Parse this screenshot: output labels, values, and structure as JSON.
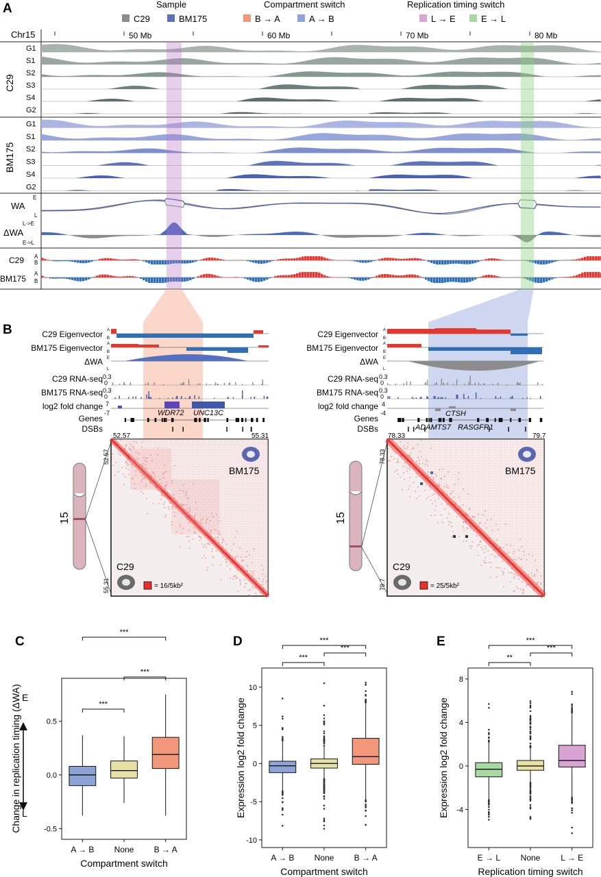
{
  "panels": {
    "a": "A",
    "b": "B",
    "c": "C",
    "d": "D",
    "e": "E"
  },
  "legend": {
    "sample_title": "Sample",
    "sample_items": [
      {
        "label": "C29",
        "color": "#8c8c8c"
      },
      {
        "label": "BM175",
        "color": "#5a70b8"
      }
    ],
    "compartment_title": "Compartment switch",
    "compartment_items": [
      {
        "label": "B → A",
        "color": "#f2977a"
      },
      {
        "label": "A → B",
        "color": "#8ea4d6"
      }
    ],
    "rt_title": "Replication timing switch",
    "rt_items": [
      {
        "label": "L → E",
        "color": "#d9a4d4"
      },
      {
        "label": "E → L",
        "color": "#a8d9a2"
      }
    ]
  },
  "panel_a": {
    "chrom": "Chr15",
    "ticks": [
      "50 Mb",
      "60 Mb",
      "70 Mb",
      "80 Mb"
    ],
    "c29_label": "C29",
    "bm175_label": "BM175",
    "phases": [
      "G1",
      "S1",
      "S2",
      "S3",
      "S4",
      "G2"
    ],
    "wa_label": "WA",
    "dwa_label": "ΔWA",
    "e_lbl": "E",
    "l_lbl": "L",
    "le_lbl": "L->E",
    "el_lbl": "E->L",
    "a_lbl": "A",
    "b_lbl": "B"
  },
  "panel_b": {
    "track_labels": [
      "C29 Eigenvector",
      "BM175 Eigenvector",
      "ΔWA",
      "C29 RNA-seq",
      "BM175 RNA-seq",
      "log2 fold change",
      "Genes",
      "DSBs"
    ],
    "left": {
      "genes": [
        "WDR72",
        "UNC13C"
      ],
      "start": "52.57",
      "end": "55.31",
      "scale": "= 16/5kb²",
      "fc_top": "7",
      "fc_bot": "-7"
    },
    "right": {
      "genes": [
        "CTSH",
        "ADAMTS7",
        "RASGFR1"
      ],
      "start": "78.33",
      "end": "79.7",
      "scale": "= 25/5kb²",
      "fc_top": "4",
      "fc_bot": "-4"
    },
    "chrom_num": "15",
    "rna_max": "0.3",
    "rna_min": "0",
    "bm175": "BM175",
    "c29": "C29"
  },
  "chart_data": [
    {
      "type": "box",
      "panel": "C",
      "ylabel": "Change in replication timing (ΔWA)",
      "xlabel": "Compartment switch",
      "categories": [
        "A → B",
        "None",
        "B → A"
      ],
      "colors": [
        "#8ea4d6",
        "#e8e1a6",
        "#f2977a"
      ],
      "ylim": [
        -0.6,
        0.9
      ],
      "yticks": [
        -0.5,
        0.0,
        0.5
      ],
      "ytick_labels": [
        "-0.5",
        "0.0",
        "0.5"
      ],
      "e_label": "E",
      "l_label": "L",
      "boxes": [
        {
          "whisker_low": -0.38,
          "q1": -0.1,
          "median": 0.0,
          "q3": 0.08,
          "whisker_high": 0.37
        },
        {
          "whisker_low": -0.26,
          "q1": -0.03,
          "median": 0.04,
          "q3": 0.13,
          "whisker_high": 0.36
        },
        {
          "whisker_low": -0.38,
          "q1": 0.06,
          "median": 0.19,
          "q3": 0.35,
          "whisker_high": 0.75
        }
      ],
      "sig": [
        {
          "from": 0,
          "to": 1,
          "label": "***"
        },
        {
          "from": 1,
          "to": 2,
          "label": "***"
        },
        {
          "from": 0,
          "to": 2,
          "label": "***"
        }
      ]
    },
    {
      "type": "box",
      "panel": "D",
      "ylabel": "Expression log2 fold change",
      "xlabel": "Compartment switch",
      "categories": [
        "A → B",
        "None",
        "B → A"
      ],
      "colors": [
        "#8ea4d6",
        "#e8e1a6",
        "#f2977a"
      ],
      "ylim": [
        -11,
        12.5
      ],
      "yticks": [
        -10,
        -5,
        0,
        5,
        10
      ],
      "ytick_labels": [
        "-10",
        "-5",
        "0",
        "5",
        "10"
      ],
      "boxes": [
        {
          "whisker_low": -3.5,
          "q1": -1.2,
          "median": -0.3,
          "q3": 0.3,
          "whisker_high": 3.0
        },
        {
          "whisker_low": -2.0,
          "q1": -0.6,
          "median": 0.0,
          "q3": 0.6,
          "whisker_high": 2.3
        },
        {
          "whisker_low": -4.8,
          "q1": -0.1,
          "median": 0.9,
          "q3": 3.3,
          "whisker_high": 8.0
        }
      ],
      "sig": [
        {
          "from": 0,
          "to": 1,
          "label": "***"
        },
        {
          "from": 1,
          "to": 2,
          "label": "***"
        },
        {
          "from": 0,
          "to": 2,
          "label": "***"
        }
      ]
    },
    {
      "type": "box",
      "panel": "E",
      "ylabel": "Expression log2 fold change",
      "xlabel": "Replication timing switch",
      "categories": [
        "E → L",
        "None",
        "L → E"
      ],
      "colors": [
        "#a8d9a2",
        "#e8e1a6",
        "#d9a4d4"
      ],
      "ylim": [
        -7.5,
        9
      ],
      "yticks": [
        -4,
        0,
        4,
        8
      ],
      "ytick_labels": [
        "-4",
        "0",
        "4",
        "8"
      ],
      "boxes": [
        {
          "whisker_low": -3.1,
          "q1": -1.0,
          "median": -0.3,
          "q3": 0.3,
          "whisker_high": 2.2
        },
        {
          "whisker_low": -1.5,
          "q1": -0.4,
          "median": 0.0,
          "q3": 0.5,
          "whisker_high": 1.7
        },
        {
          "whisker_low": -2.9,
          "q1": -0.1,
          "median": 0.5,
          "q3": 1.9,
          "whisker_high": 4.8
        }
      ],
      "sig": [
        {
          "from": 0,
          "to": 1,
          "label": "**"
        },
        {
          "from": 1,
          "to": 2,
          "label": "***"
        },
        {
          "from": 0,
          "to": 2,
          "label": "***"
        }
      ]
    }
  ]
}
